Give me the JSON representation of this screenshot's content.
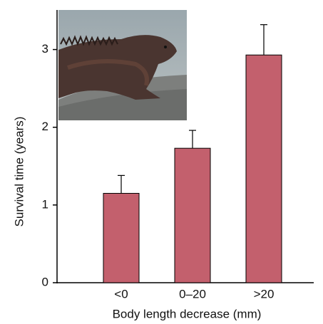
{
  "chart_data": {
    "type": "bar",
    "x_label": "Body length decrease (mm)",
    "y_label": "Survival time (years)",
    "categories": [
      "<0",
      "0–20",
      ">20"
    ],
    "values": [
      1.15,
      1.73,
      2.93
    ],
    "errors": [
      0.23,
      0.23,
      0.39
    ],
    "color": "#c3606d",
    "ylim": [
      0,
      3.5
    ],
    "yticks": [
      0,
      1,
      2,
      3
    ]
  }
}
